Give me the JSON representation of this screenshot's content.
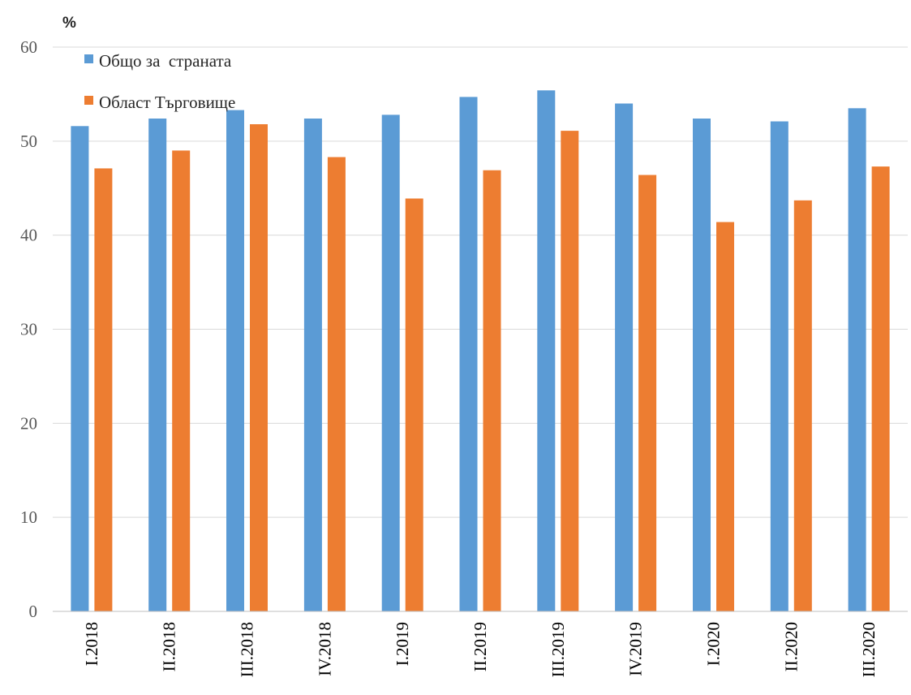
{
  "chart_data": {
    "type": "bar",
    "title": "",
    "xlabel": "",
    "ylabel": "%",
    "ylim": [
      0,
      60
    ],
    "yticks": [
      0,
      10,
      20,
      30,
      40,
      50,
      60
    ],
    "grid": true,
    "legend_position": "top-left",
    "categories": [
      "I.2018",
      "II.2018",
      "III.2018",
      "IV.2018",
      "I.2019",
      "II.2019",
      "III.2019",
      "IV.2019",
      "I.2020",
      "II.2020",
      "III.2020"
    ],
    "series": [
      {
        "name": "Общо за  страната",
        "color": "#5b9bd5",
        "values": [
          51.6,
          52.4,
          53.3,
          52.4,
          52.8,
          54.7,
          55.4,
          54.0,
          52.4,
          52.1,
          53.5
        ]
      },
      {
        "name": "Област Търговище",
        "color": "#ed7d31",
        "values": [
          47.1,
          49.0,
          51.8,
          48.3,
          43.9,
          46.9,
          51.1,
          46.4,
          41.4,
          43.7,
          47.3
        ]
      }
    ]
  }
}
